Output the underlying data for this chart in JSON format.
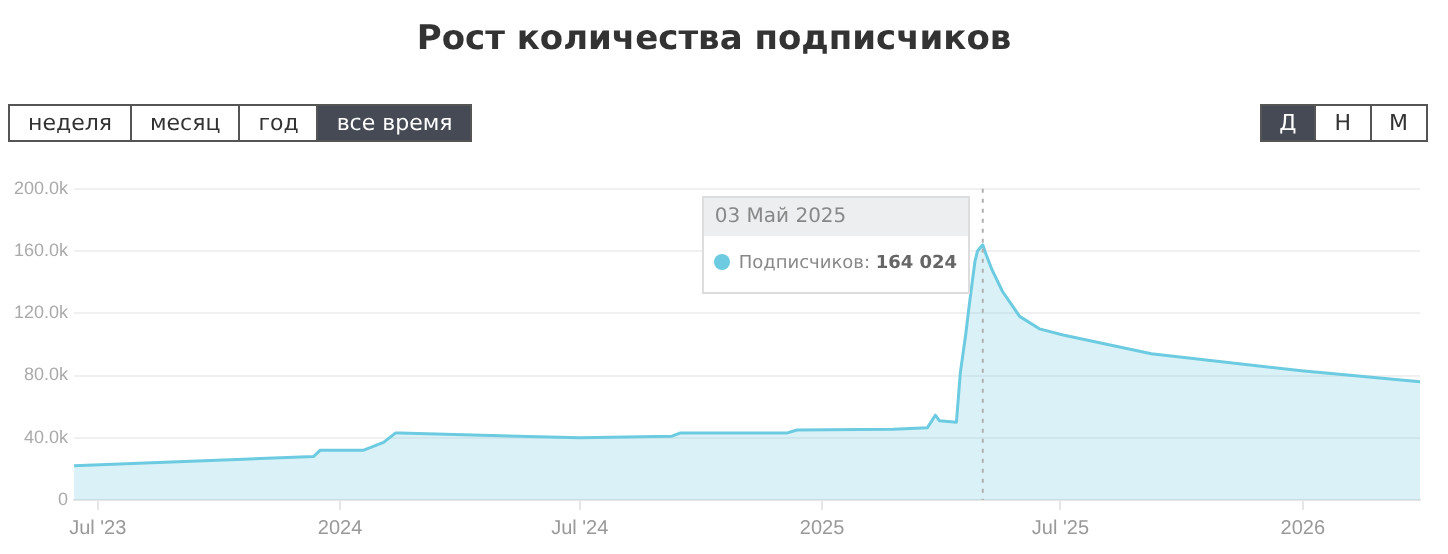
{
  "chart_data": {
    "type": "area",
    "title": "Рост количества подписчиков",
    "x": [
      "2023-06-13",
      "2023-12-12",
      "2023-12-17",
      "2024-01-19",
      "2024-02-03",
      "2024-02-12",
      "2024-02-15",
      "2024-07-01",
      "2024-09-09",
      "2024-09-15",
      "2024-10-07",
      "2024-12-05",
      "2024-12-13",
      "2025-02-24",
      "2025-03-22",
      "2025-03-28",
      "2025-03-31",
      "2025-04-13",
      "2025-04-16",
      "2025-04-20",
      "2025-04-23",
      "2025-04-27",
      "2025-04-29",
      "2025-05-03",
      "2025-05-05",
      "2025-05-10",
      "2025-05-18",
      "2025-05-31",
      "2025-06-15",
      "2025-07-03",
      "2025-09-08",
      "2025-12-31",
      "2026-03-31"
    ],
    "series": [
      {
        "name": "Подписчиков:",
        "color": "#6ccbe0",
        "values": [
          22000,
          28000,
          32000,
          32000,
          37000,
          43000,
          43000,
          40000,
          41000,
          43000,
          43000,
          43000,
          45000,
          45500,
          46500,
          54500,
          51000,
          50000,
          82000,
          106000,
          127000,
          153000,
          160000,
          164024,
          159000,
          148000,
          134000,
          118000,
          110000,
          106000,
          94000,
          83000,
          76000
        ]
      }
    ],
    "xlim": [
      "2023-06-13",
      "2026-03-31"
    ],
    "xticks": [
      {
        "value": "2023-07-01",
        "label": "Jul '23"
      },
      {
        "value": "2024-01-01",
        "label": "2024"
      },
      {
        "value": "2024-07-01",
        "label": "Jul '24"
      },
      {
        "value": "2025-01-01",
        "label": "2025"
      },
      {
        "value": "2025-07-01",
        "label": "Jul '25"
      },
      {
        "value": "2026-01-01",
        "label": "2026"
      }
    ],
    "ylim": [
      0,
      200000
    ],
    "yticks": [
      {
        "value": 0,
        "label": "0"
      },
      {
        "value": 40000,
        "label": "40.0k"
      },
      {
        "value": 80000,
        "label": "80.0k"
      },
      {
        "value": 120000,
        "label": "120.0k"
      },
      {
        "value": 160000,
        "label": "160.0k"
      },
      {
        "value": 200000,
        "label": "200.0k"
      }
    ],
    "grid": "y",
    "legend": "top",
    "marker": "none",
    "line_style": "solid",
    "ref_lines": [
      {
        "axis": "x",
        "value": "2025-05-03",
        "line_style": "dotted",
        "color": "#b0b0b0"
      }
    ],
    "annotations": [
      "03 Май 2025",
      "164 024",
      "неделя",
      "месяц",
      "год",
      "все время",
      "Д",
      "Н",
      "М"
    ]
  }
}
